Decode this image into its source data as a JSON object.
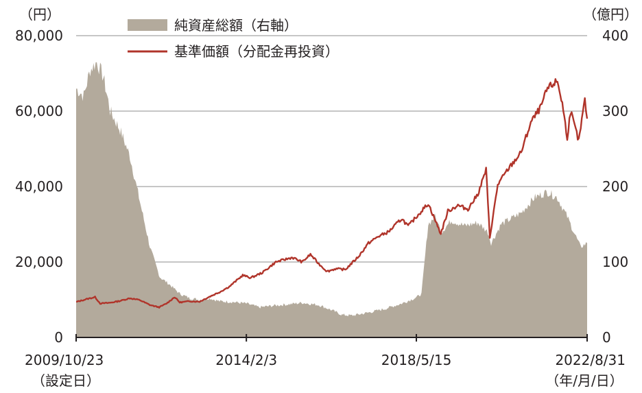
{
  "chart_data": {
    "type": "area+line",
    "y_left_unit": "（円）",
    "y_right_unit": "（億円）",
    "legend": [
      {
        "label": "純資産総額（右軸）",
        "color": "#b3aa9c",
        "kind": "area"
      },
      {
        "label": "基準価額（分配金再投資）",
        "color": "#b0342a",
        "kind": "line"
      }
    ],
    "y_left_ticks": [
      "0",
      "20,000",
      "40,000",
      "60,000",
      "80,000"
    ],
    "y_right_ticks": [
      "0",
      "100",
      "200",
      "300",
      "400"
    ],
    "ylim_left": [
      0,
      80000
    ],
    "ylim_right": [
      0,
      400
    ],
    "x_range": [
      "2009-10-23",
      "2022-08-31"
    ],
    "x_ticks": [
      {
        "date": "2009-10-23",
        "label": "2009/10/23",
        "sublabel": "（設定日）"
      },
      {
        "date": "2014-02-03",
        "label": "2014/2/3",
        "sublabel": ""
      },
      {
        "date": "2018-05-15",
        "label": "2018/5/15",
        "sublabel": ""
      },
      {
        "date": "2022-08-31",
        "label": "2022/8/31",
        "sublabel": "（年/月/日）"
      }
    ],
    "grid": "horizontal at 20,000 / 40,000 / 60,000 / 80,000",
    "series": [
      {
        "name": "基準価額（分配金再投資）",
        "axis": "left",
        "points": [
          [
            "2009-10-23",
            9400
          ],
          [
            "2010-02-01",
            10200
          ],
          [
            "2010-04-15",
            10700
          ],
          [
            "2010-06-01",
            9000
          ],
          [
            "2010-09-01",
            9200
          ],
          [
            "2010-12-01",
            9700
          ],
          [
            "2011-03-01",
            10400
          ],
          [
            "2011-06-01",
            9900
          ],
          [
            "2011-09-01",
            8600
          ],
          [
            "2011-11-25",
            8000
          ],
          [
            "2012-02-01",
            9000
          ],
          [
            "2012-04-15",
            10700
          ],
          [
            "2012-06-01",
            9300
          ],
          [
            "2012-09-01",
            9600
          ],
          [
            "2012-12-01",
            9500
          ],
          [
            "2013-03-01",
            10800
          ],
          [
            "2013-06-01",
            12000
          ],
          [
            "2013-09-01",
            13500
          ],
          [
            "2014-01-01",
            16500
          ],
          [
            "2014-03-15",
            15800
          ],
          [
            "2014-07-01",
            17200
          ],
          [
            "2014-11-01",
            20000
          ],
          [
            "2015-04-01",
            21200
          ],
          [
            "2015-07-01",
            20000
          ],
          [
            "2015-09-15",
            22000
          ],
          [
            "2015-12-01",
            19500
          ],
          [
            "2016-02-15",
            17500
          ],
          [
            "2016-05-01",
            18200
          ],
          [
            "2016-08-01",
            18000
          ],
          [
            "2016-12-01",
            21500
          ],
          [
            "2017-03-01",
            25000
          ],
          [
            "2017-06-01",
            26800
          ],
          [
            "2017-09-01",
            28000
          ],
          [
            "2018-01-01",
            31500
          ],
          [
            "2018-03-01",
            29500
          ],
          [
            "2018-05-15",
            32000
          ],
          [
            "2018-09-01",
            35500
          ],
          [
            "2018-12-25",
            27500
          ],
          [
            "2019-03-01",
            33500
          ],
          [
            "2019-06-01",
            35000
          ],
          [
            "2019-09-01",
            34000
          ],
          [
            "2019-12-01",
            38000
          ],
          [
            "2020-02-15",
            44500
          ],
          [
            "2020-03-20",
            26500
          ],
          [
            "2020-06-01",
            40500
          ],
          [
            "2020-09-01",
            44500
          ],
          [
            "2021-01-01",
            49000
          ],
          [
            "2021-04-01",
            57000
          ],
          [
            "2021-07-01",
            61000
          ],
          [
            "2021-09-01",
            66000
          ],
          [
            "2021-12-01",
            68000
          ],
          [
            "2022-01-15",
            62000
          ],
          [
            "2022-03-01",
            53000
          ],
          [
            "2022-04-01",
            60000
          ],
          [
            "2022-06-15",
            52000
          ],
          [
            "2022-08-10",
            63000
          ],
          [
            "2022-08-31",
            58000
          ]
        ]
      },
      {
        "name": "純資産総額（右軸）",
        "axis": "right",
        "points": [
          [
            "2009-10-23",
            330
          ],
          [
            "2010-01-01",
            320
          ],
          [
            "2010-03-01",
            355
          ],
          [
            "2010-05-01",
            365
          ],
          [
            "2010-07-01",
            345
          ],
          [
            "2010-09-01",
            300
          ],
          [
            "2010-12-01",
            275
          ],
          [
            "2011-03-01",
            240
          ],
          [
            "2011-06-01",
            180
          ],
          [
            "2011-09-01",
            120
          ],
          [
            "2011-12-01",
            80
          ],
          [
            "2012-03-01",
            70
          ],
          [
            "2012-06-01",
            58
          ],
          [
            "2012-09-01",
            52
          ],
          [
            "2012-12-01",
            50
          ],
          [
            "2013-03-01",
            52
          ],
          [
            "2013-06-01",
            48
          ],
          [
            "2013-10-01",
            47
          ],
          [
            "2014-02-03",
            45
          ],
          [
            "2014-06-01",
            40
          ],
          [
            "2014-10-01",
            42
          ],
          [
            "2015-03-01",
            44
          ],
          [
            "2015-07-01",
            46
          ],
          [
            "2015-12-01",
            43
          ],
          [
            "2016-04-01",
            36
          ],
          [
            "2016-07-01",
            30
          ],
          [
            "2016-10-01",
            29
          ],
          [
            "2017-03-01",
            33
          ],
          [
            "2017-08-01",
            38
          ],
          [
            "2018-01-01",
            45
          ],
          [
            "2018-05-15",
            53
          ],
          [
            "2018-07-01",
            58
          ],
          [
            "2018-09-01",
            150
          ],
          [
            "2018-11-01",
            160
          ],
          [
            "2019-01-01",
            140
          ],
          [
            "2019-04-01",
            155
          ],
          [
            "2019-08-01",
            148
          ],
          [
            "2019-12-01",
            152
          ],
          [
            "2020-03-01",
            140
          ],
          [
            "2020-04-01",
            125
          ],
          [
            "2020-07-01",
            150
          ],
          [
            "2021-01-01",
            165
          ],
          [
            "2021-05-01",
            185
          ],
          [
            "2021-09-01",
            193
          ],
          [
            "2021-12-01",
            185
          ],
          [
            "2022-03-01",
            160
          ],
          [
            "2022-05-01",
            140
          ],
          [
            "2022-07-01",
            120
          ],
          [
            "2022-08-31",
            125
          ]
        ]
      }
    ]
  }
}
